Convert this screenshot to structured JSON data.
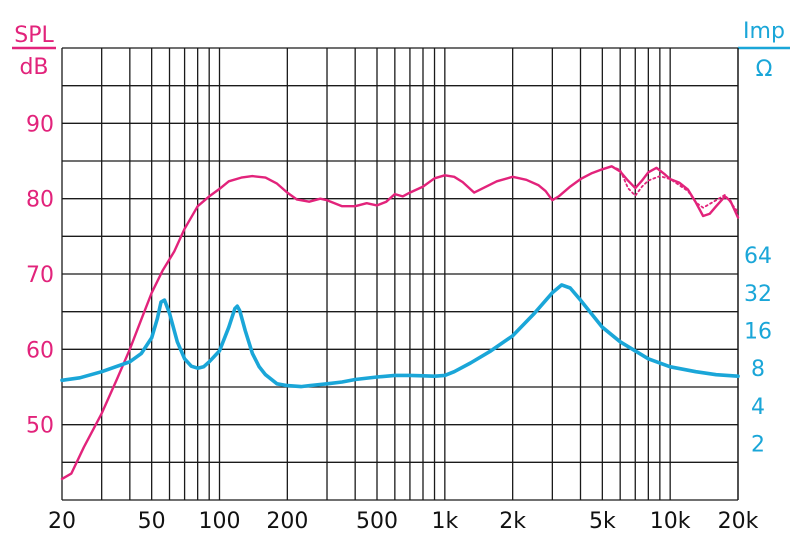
{
  "chart_data": {
    "type": "line",
    "x_scale": "log",
    "xlim": [
      20,
      20000
    ],
    "x_ticks": [
      {
        "value": 20,
        "label": "20"
      },
      {
        "value": 50,
        "label": "50"
      },
      {
        "value": 100,
        "label": "100"
      },
      {
        "value": 200,
        "label": "200"
      },
      {
        "value": 500,
        "label": "500"
      },
      {
        "value": 1000,
        "label": "1k"
      },
      {
        "value": 2000,
        "label": "2k"
      },
      {
        "value": 5000,
        "label": "5k"
      },
      {
        "value": 10000,
        "label": "10k"
      },
      {
        "value": 20000,
        "label": "20k"
      }
    ],
    "left_axis": {
      "label_top": "SPL",
      "label_bottom": "dB",
      "ylim": [
        40,
        100
      ],
      "ticks": [
        {
          "value": 50,
          "label": "50"
        },
        {
          "value": 60,
          "label": "60"
        },
        {
          "value": 70,
          "label": "70"
        },
        {
          "value": 80,
          "label": "80"
        },
        {
          "value": 90,
          "label": "90"
        }
      ]
    },
    "right_axis": {
      "label_top": "Imp",
      "label_bottom": "Ω",
      "scale": "log",
      "ticks": [
        {
          "value": 2,
          "label": "2"
        },
        {
          "value": 4,
          "label": "4"
        },
        {
          "value": 8,
          "label": "8"
        },
        {
          "value": 16,
          "label": "16"
        },
        {
          "value": 32,
          "label": "32"
        },
        {
          "value": 64,
          "label": "64"
        }
      ]
    },
    "grid": true,
    "series": [
      {
        "axis": "left",
        "color": "#e2237b",
        "style": "solid",
        "points": [
          [
            20,
            42.8
          ],
          [
            22,
            43.5
          ],
          [
            25,
            47
          ],
          [
            30,
            51.5
          ],
          [
            35,
            56
          ],
          [
            40,
            60
          ],
          [
            45,
            64
          ],
          [
            50,
            67.5
          ],
          [
            56,
            70.5
          ],
          [
            63,
            73
          ],
          [
            70,
            76
          ],
          [
            80,
            79
          ],
          [
            90,
            80.3
          ],
          [
            100,
            81.3
          ],
          [
            110,
            82.3
          ],
          [
            125,
            82.8
          ],
          [
            140,
            83
          ],
          [
            160,
            82.8
          ],
          [
            180,
            82
          ],
          [
            200,
            80.8
          ],
          [
            220,
            79.9
          ],
          [
            250,
            79.6
          ],
          [
            280,
            80
          ],
          [
            300,
            79.8
          ],
          [
            350,
            79
          ],
          [
            400,
            79
          ],
          [
            450,
            79.4
          ],
          [
            500,
            79.1
          ],
          [
            550,
            79.6
          ],
          [
            600,
            80.6
          ],
          [
            650,
            80.3
          ],
          [
            700,
            80.8
          ],
          [
            800,
            81.6
          ],
          [
            900,
            82.7
          ],
          [
            1000,
            83.1
          ],
          [
            1100,
            82.9
          ],
          [
            1200,
            82.2
          ],
          [
            1350,
            80.8
          ],
          [
            1500,
            81.5
          ],
          [
            1700,
            82.3
          ],
          [
            2000,
            82.9
          ],
          [
            2300,
            82.5
          ],
          [
            2600,
            81.8
          ],
          [
            2800,
            81
          ],
          [
            3000,
            79.8
          ],
          [
            3200,
            80.3
          ],
          [
            3600,
            81.6
          ],
          [
            4000,
            82.6
          ],
          [
            4500,
            83.4
          ],
          [
            5000,
            83.9
          ],
          [
            5500,
            84.3
          ],
          [
            6000,
            83.6
          ],
          [
            6500,
            82.4
          ],
          [
            7000,
            81.4
          ],
          [
            7500,
            82.4
          ],
          [
            8000,
            83.5
          ],
          [
            8700,
            84.1
          ],
          [
            9500,
            83.2
          ],
          [
            10000,
            82.6
          ],
          [
            11000,
            82.1
          ],
          [
            12000,
            81.2
          ],
          [
            13000,
            79.5
          ],
          [
            14000,
            77.7
          ],
          [
            15000,
            78
          ],
          [
            16000,
            79
          ],
          [
            17500,
            80.3
          ],
          [
            18500,
            79.7
          ],
          [
            20000,
            77.5
          ]
        ]
      },
      {
        "axis": "left",
        "color": "#e2237b",
        "style": "dotted",
        "points": [
          [
            5500,
            84.3
          ],
          [
            6000,
            83.8
          ],
          [
            6500,
            81.4
          ],
          [
            7000,
            80.4
          ],
          [
            7500,
            81.6
          ],
          [
            8000,
            82.4
          ],
          [
            9000,
            83
          ],
          [
            10000,
            82.6
          ],
          [
            12000,
            81
          ],
          [
            13000,
            79.5
          ],
          [
            14000,
            78.8
          ],
          [
            16000,
            79.8
          ],
          [
            17500,
            80.5
          ],
          [
            20000,
            78.2
          ]
        ]
      },
      {
        "axis": "right",
        "color": "#1aa6d8",
        "style": "solid",
        "points": [
          [
            20,
            6.4
          ],
          [
            24,
            6.7
          ],
          [
            30,
            7.5
          ],
          [
            40,
            9
          ],
          [
            45,
            10.5
          ],
          [
            50,
            14
          ],
          [
            53,
            20
          ],
          [
            55,
            27
          ],
          [
            57,
            28
          ],
          [
            60,
            22
          ],
          [
            65,
            13
          ],
          [
            70,
            9.5
          ],
          [
            75,
            8.3
          ],
          [
            80,
            8
          ],
          [
            85,
            8.2
          ],
          [
            90,
            9
          ],
          [
            100,
            11
          ],
          [
            110,
            17
          ],
          [
            117,
            24
          ],
          [
            120,
            25
          ],
          [
            123,
            23
          ],
          [
            130,
            16
          ],
          [
            140,
            10.5
          ],
          [
            150,
            8.2
          ],
          [
            160,
            7.1
          ],
          [
            180,
            6
          ],
          [
            200,
            5.8
          ],
          [
            230,
            5.7
          ],
          [
            250,
            5.8
          ],
          [
            300,
            6
          ],
          [
            350,
            6.2
          ],
          [
            400,
            6.5
          ],
          [
            500,
            6.8
          ],
          [
            600,
            7
          ],
          [
            700,
            7
          ],
          [
            800,
            6.95
          ],
          [
            900,
            6.9
          ],
          [
            1000,
            7
          ],
          [
            1100,
            7.5
          ],
          [
            1300,
            8.8
          ],
          [
            1600,
            11
          ],
          [
            2000,
            14.5
          ],
          [
            2500,
            22
          ],
          [
            3000,
            32
          ],
          [
            3300,
            37
          ],
          [
            3600,
            35
          ],
          [
            4000,
            28
          ],
          [
            5000,
            17
          ],
          [
            6000,
            13
          ],
          [
            8000,
            9.5
          ],
          [
            10000,
            8.2
          ],
          [
            13000,
            7.5
          ],
          [
            16000,
            7.1
          ],
          [
            20000,
            6.9
          ]
        ]
      }
    ]
  },
  "colors": {
    "spl": "#e2237b",
    "imp": "#1aa6d8",
    "grid": "#1a1a1a"
  }
}
